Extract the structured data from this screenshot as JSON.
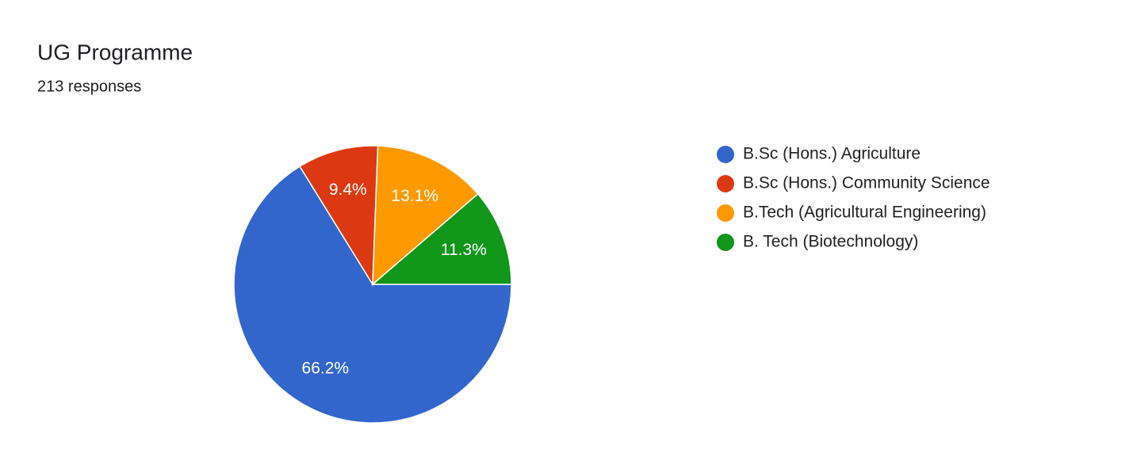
{
  "chart_data": {
    "type": "pie",
    "title": "UG Programme",
    "subtitle": "213 responses",
    "categories": [
      "B.Sc (Hons.) Agriculture",
      "B.Sc (Hons.) Community Science",
      "B.Tech (Agricultural Engineering)",
      "B. Tech (Biotechnology)"
    ],
    "values": [
      66.2,
      9.4,
      13.1,
      11.3
    ],
    "value_labels": [
      "66.2%",
      "9.4%",
      "13.1%",
      "11.3%"
    ],
    "colors": [
      "#3366cc",
      "#dc3912",
      "#ff9900",
      "#109618"
    ],
    "legend": "right"
  }
}
